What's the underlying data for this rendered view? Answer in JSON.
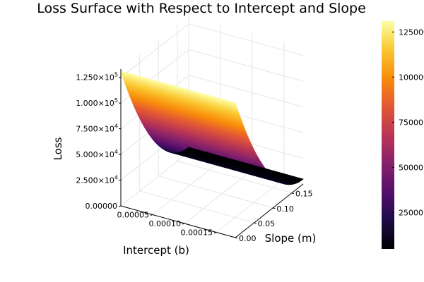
{
  "chart_data": {
    "type": "surface",
    "title": "Loss Surface with Respect to Intercept and Slope",
    "xlabel": "Intercept (b)",
    "ylabel": "Slope (m)",
    "zlabel": "Loss",
    "xlim": [
      0,
      0.00018
    ],
    "ylim": [
      0,
      0.18
    ],
    "zlim": [
      0,
      133000
    ],
    "x_ticks": [
      0.0,
      5e-05,
      0.0001,
      0.00015
    ],
    "x_tick_labels": [
      "0.00000",
      "0.00005",
      "0.00010",
      "0.00015"
    ],
    "y_ticks": [
      0.0,
      0.05,
      0.1,
      0.15
    ],
    "y_tick_labels": [
      "0.00",
      "0.05",
      "0.10",
      "0.15"
    ],
    "z_ticks": [
      25000,
      50000,
      75000,
      100000,
      125000
    ],
    "z_tick_labels": [
      {
        "mantissa": "2.500",
        "exponent": "4"
      },
      {
        "mantissa": "5.000",
        "exponent": "4"
      },
      {
        "mantissa": "7.500",
        "exponent": "4"
      },
      {
        "mantissa": "1.000",
        "exponent": "5"
      },
      {
        "mantissa": "1.250",
        "exponent": "5"
      }
    ],
    "colorbar": {
      "colormap": "inferno",
      "range": [
        4800,
        131000
      ],
      "ticks": [
        25000,
        50000,
        75000,
        100000,
        125000
      ],
      "tick_labels": [
        "25000",
        "50000",
        "75000",
        "100000",
        "125000"
      ]
    },
    "surface_corners": [
      {
        "intercept": 0.0,
        "slope": 0.0,
        "loss": 131000
      },
      {
        "intercept": 0.00018,
        "slope": 0.0,
        "loss": 131000
      },
      {
        "intercept": 0.0,
        "slope": 0.18,
        "loss": 4800
      },
      {
        "intercept": 0.00018,
        "slope": 0.18,
        "loss": 4800
      }
    ],
    "grid": true,
    "legend": "none"
  }
}
